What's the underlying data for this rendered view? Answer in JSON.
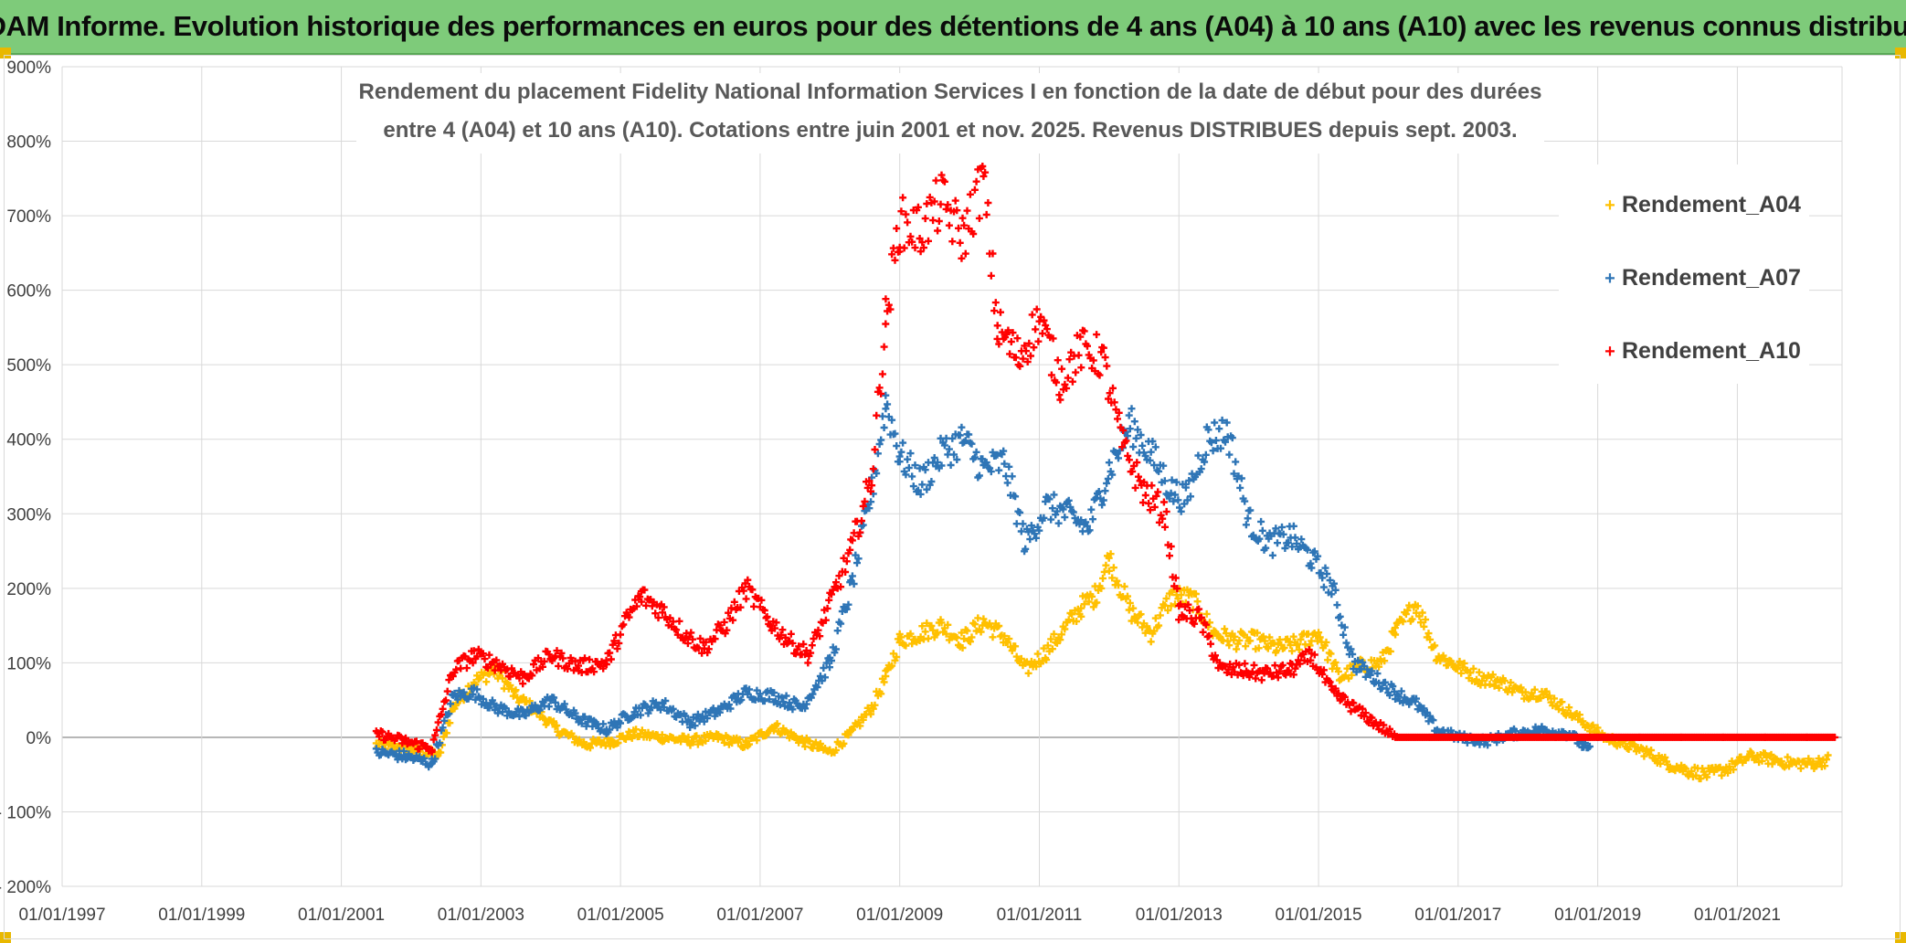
{
  "banner": {
    "title": "ADAM Informe. Evolution historique des performances en euros pour des détentions de 4 ans (A04) à 10 ans (A10) avec les revenus connus distribués"
  },
  "chart_data": {
    "type": "scatter",
    "title_lines": [
      "Rendement du placement Fidelity National Information Services I en fonction de la date de début pour des durées",
      "entre 4 (A04) et 10 ans (A10). Cotations entre juin 2001 et nov. 2025. Revenus DISTRIBUES depuis sept. 2003."
    ],
    "xlabel": "",
    "ylabel": "",
    "xlim": [
      1997.0,
      2022.5
    ],
    "ylim": [
      -200,
      900
    ],
    "x_tick_labels": [
      "01/01/1997",
      "01/01/1999",
      "01/01/2001",
      "01/01/2003",
      "01/01/2005",
      "01/01/2007",
      "01/01/2009",
      "01/01/2011",
      "01/01/2013",
      "01/01/2015",
      "01/01/2017",
      "01/01/2019",
      "01/01/2021"
    ],
    "x_tick_values": [
      1997,
      1999,
      2001,
      2003,
      2005,
      2007,
      2009,
      2011,
      2013,
      2015,
      2017,
      2019,
      2021
    ],
    "y_tick_labels": [
      "- 200%",
      "- 100%",
      "0%",
      "100%",
      "200%",
      "300%",
      "400%",
      "500%",
      "600%",
      "700%",
      "800%",
      "900%"
    ],
    "y_tick_values": [
      -200,
      -100,
      0,
      100,
      200,
      300,
      400,
      500,
      600,
      700,
      800,
      900
    ],
    "grid": true,
    "legend_position": "top-right",
    "marker": "+",
    "series": [
      {
        "name": "Rendement_A04",
        "color": "#ffc000",
        "x": [
          2001.5,
          2002.0,
          2002.4,
          2002.6,
          2002.9,
          2003.2,
          2003.5,
          2003.8,
          2004.1,
          2004.5,
          2004.9,
          2005.2,
          2005.6,
          2006.0,
          2006.4,
          2006.8,
          2007.2,
          2007.6,
          2008.0,
          2008.3,
          2008.6,
          2008.8,
          2009.0,
          2009.3,
          2009.6,
          2009.9,
          2010.2,
          2010.5,
          2010.8,
          2011.1,
          2011.4,
          2011.6,
          2011.8,
          2012.0,
          2012.3,
          2012.6,
          2012.9,
          2013.2,
          2013.5,
          2013.8,
          2014.1,
          2014.4,
          2014.7,
          2015.0,
          2015.3,
          2015.6,
          2015.9,
          2016.1,
          2016.4,
          2016.7,
          2017.0,
          2017.3,
          2017.6,
          2017.9,
          2018.2,
          2018.5,
          2018.8,
          2019.1,
          2019.4,
          2019.7,
          2020.0,
          2020.3,
          2020.6,
          2020.9,
          2021.2,
          2021.5,
          2021.8,
          2022.1,
          2022.3
        ],
        "y": [
          -10,
          -15,
          -25,
          40,
          75,
          90,
          55,
          35,
          10,
          -10,
          -5,
          5,
          0,
          -5,
          0,
          -10,
          15,
          -5,
          -20,
          5,
          40,
          80,
          130,
          140,
          150,
          130,
          155,
          135,
          90,
          115,
          150,
          175,
          190,
          240,
          170,
          140,
          190,
          185,
          140,
          130,
          130,
          120,
          125,
          140,
          80,
          95,
          100,
          140,
          180,
          110,
          95,
          80,
          75,
          60,
          60,
          40,
          20,
          0,
          -10,
          -20,
          -35,
          -45,
          -50,
          -40,
          -25,
          -30,
          -35,
          -35,
          -30
        ]
      },
      {
        "name": "Rendement_A07",
        "color": "#2e75b6",
        "x": [
          2001.5,
          2001.9,
          2002.3,
          2002.6,
          2002.9,
          2003.2,
          2003.6,
          2004.0,
          2004.4,
          2004.8,
          2005.2,
          2005.6,
          2006.0,
          2006.4,
          2006.8,
          2007.2,
          2007.6,
          2008.0,
          2008.3,
          2008.6,
          2008.8,
          2009.0,
          2009.3,
          2009.6,
          2009.9,
          2010.2,
          2010.5,
          2010.8,
          2011.1,
          2011.4,
          2011.7,
          2012.0,
          2012.3,
          2012.6,
          2012.9,
          2013.1,
          2013.4,
          2013.7,
          2014.0,
          2014.3,
          2014.6,
          2014.9,
          2015.2,
          2015.5,
          2015.8,
          2016.1,
          2016.4,
          2016.7,
          2017.0,
          2017.4,
          2017.8,
          2018.2,
          2018.6,
          2018.9
        ],
        "y": [
          -20,
          -25,
          -35,
          55,
          60,
          40,
          30,
          50,
          25,
          10,
          35,
          45,
          20,
          35,
          60,
          55,
          40,
          100,
          200,
          330,
          450,
          380,
          340,
          380,
          400,
          360,
          370,
          260,
          310,
          300,
          280,
          360,
          420,
          380,
          330,
          320,
          400,
          410,
          290,
          260,
          270,
          240,
          200,
          100,
          80,
          60,
          45,
          10,
          0,
          -5,
          5,
          10,
          5,
          -20
        ]
      },
      {
        "name": "Rendement_A10",
        "color": "#ff0000",
        "x": [
          2001.5,
          2001.9,
          2002.3,
          2002.6,
          2002.9,
          2003.2,
          2003.6,
          2004.0,
          2004.4,
          2004.8,
          2005.1,
          2005.3,
          2005.6,
          2005.9,
          2006.2,
          2006.5,
          2006.8,
          2007.1,
          2007.4,
          2007.7,
          2008.0,
          2008.3,
          2008.6,
          2008.8,
          2009.0,
          2009.3,
          2009.6,
          2009.9,
          2010.2,
          2010.4,
          2010.7,
          2011.0,
          2011.3,
          2011.6,
          2011.9,
          2012.2,
          2012.5,
          2012.8,
          2013.0,
          2013.3,
          2013.6,
          2013.9,
          2014.2,
          2014.6,
          2014.9,
          2015.2,
          2015.5,
          2015.8,
          2016.1,
          2016.6,
          2017.2,
          2017.8,
          2018.4,
          2019.0,
          2019.6,
          2020.2,
          2020.8,
          2021.4,
          2022.0,
          2022.4
        ],
        "y": [
          5,
          -5,
          -15,
          90,
          110,
          100,
          80,
          110,
          95,
          100,
          160,
          190,
          170,
          140,
          120,
          150,
          200,
          160,
          130,
          110,
          180,
          250,
          350,
          560,
          690,
          680,
          720,
          670,
          750,
          550,
          510,
          560,
          480,
          520,
          510,
          390,
          330,
          300,
          170,
          160,
          90,
          90,
          85,
          90,
          110,
          60,
          40,
          20,
          0,
          0,
          0,
          0,
          0,
          0,
          0,
          0,
          0,
          0,
          0,
          0
        ]
      }
    ]
  }
}
